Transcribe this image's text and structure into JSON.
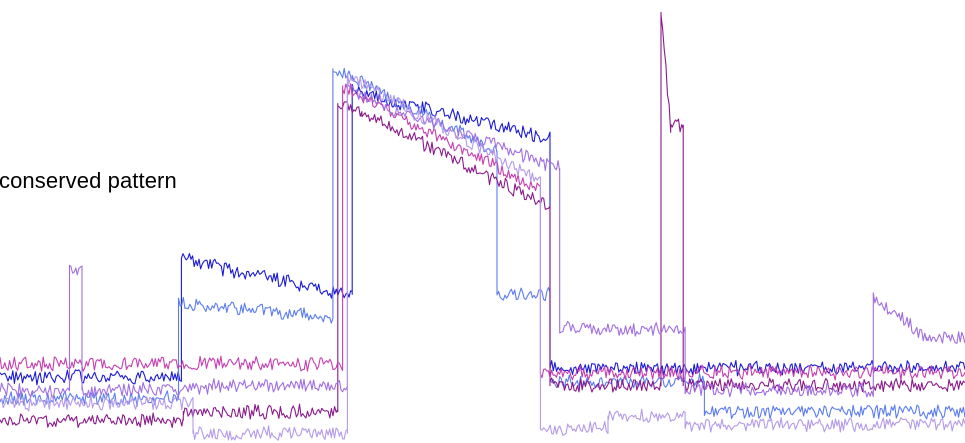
{
  "chart_data": {
    "type": "line",
    "title": "",
    "xlabel": "",
    "ylabel": "",
    "annotation": "conserved pattern",
    "grid": false,
    "legend": "none",
    "xlim": [
      0,
      100
    ],
    "ylim": [
      0,
      100
    ],
    "series": [
      {
        "color": "#1a1ad6",
        "segments": [
          [
            0,
            15
          ],
          [
            18.8,
            15
          ],
          [
            18.8,
            42
          ],
          [
            36.5,
            34
          ],
          [
            36.5,
            82
          ],
          [
            38,
            80
          ],
          [
            57,
            70
          ],
          [
            57,
            17
          ],
          [
            100,
            17
          ]
        ]
      },
      {
        "color": "#5b7cf0",
        "segments": [
          [
            0,
            10
          ],
          [
            18.5,
            10
          ],
          [
            18.5,
            32
          ],
          [
            34.5,
            29
          ],
          [
            34.5,
            86
          ],
          [
            36.5,
            84
          ],
          [
            51.5,
            67
          ],
          [
            51.5,
            34
          ],
          [
            57,
            34
          ],
          [
            57,
            14
          ],
          [
            73,
            14
          ],
          [
            73,
            7
          ],
          [
            100,
            7
          ]
        ]
      },
      {
        "color": "#8a1a8a",
        "segments": [
          [
            0,
            5
          ],
          [
            19,
            5
          ],
          [
            19,
            7
          ],
          [
            35,
            7
          ],
          [
            35,
            78
          ],
          [
            37.5,
            76
          ],
          [
            57,
            54
          ],
          [
            57,
            13
          ],
          [
            68.5,
            13
          ],
          [
            68.5,
            99
          ],
          [
            69.5,
            73
          ],
          [
            70.8,
            73
          ],
          [
            70.8,
            13
          ],
          [
            100,
            13
          ]
        ]
      },
      {
        "color": "#c43fb0",
        "segments": [
          [
            0,
            18
          ],
          [
            35.5,
            18
          ],
          [
            35.5,
            82
          ],
          [
            37,
            80
          ],
          [
            56,
            58
          ],
          [
            56,
            16
          ],
          [
            100,
            16
          ]
        ]
      },
      {
        "color": "#a06ee0",
        "segments": [
          [
            0,
            12
          ],
          [
            7.2,
            12
          ],
          [
            7.2,
            40
          ],
          [
            8.5,
            40
          ],
          [
            8.5,
            12
          ],
          [
            22,
            12
          ],
          [
            22,
            13
          ],
          [
            36,
            13
          ],
          [
            36,
            81
          ],
          [
            38,
            79
          ],
          [
            58,
            63
          ],
          [
            58,
            26
          ],
          [
            71,
            26
          ],
          [
            71,
            12
          ],
          [
            90.5,
            12
          ],
          [
            90.5,
            33
          ],
          [
            96,
            24
          ],
          [
            100,
            24
          ]
        ]
      },
      {
        "color": "#b59ae8",
        "segments": [
          [
            0,
            9
          ],
          [
            20,
            9
          ],
          [
            20,
            2
          ],
          [
            36,
            2
          ],
          [
            36,
            84
          ],
          [
            38,
            82
          ],
          [
            56,
            60
          ],
          [
            56,
            3
          ],
          [
            63,
            3
          ],
          [
            63,
            6
          ],
          [
            71,
            6
          ],
          [
            71,
            4
          ],
          [
            100,
            4
          ]
        ]
      }
    ]
  }
}
